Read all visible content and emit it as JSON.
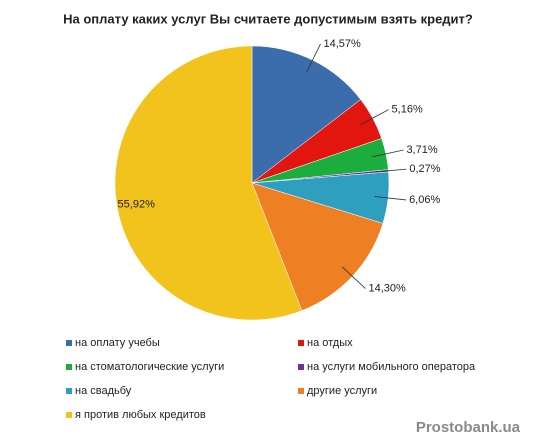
{
  "chart_data": {
    "type": "pie",
    "title": "На оплату каких услуг Вы считаете допустимым взять кредит?",
    "categories": [
      "на оплату учебы",
      "на отдых",
      "на стоматологические услуги",
      "на услуги мобильного оператора",
      "на свадьбу",
      "другие услуги",
      "я против любых кредитов"
    ],
    "values": [
      14.57,
      5.16,
      3.71,
      0.27,
      6.06,
      14.3,
      55.92
    ],
    "value_labels": [
      "14,57%",
      "5,16%",
      "3,71%",
      "0,27%",
      "6,06%",
      "14,30%",
      "55,92%"
    ],
    "colors": [
      "#3b6cab",
      "#e3150f",
      "#1cad3f",
      "#6f2f9a",
      "#2f9fbf",
      "#ee7f22",
      "#f2c21d"
    ],
    "watermark": "Prostobank.ua"
  }
}
